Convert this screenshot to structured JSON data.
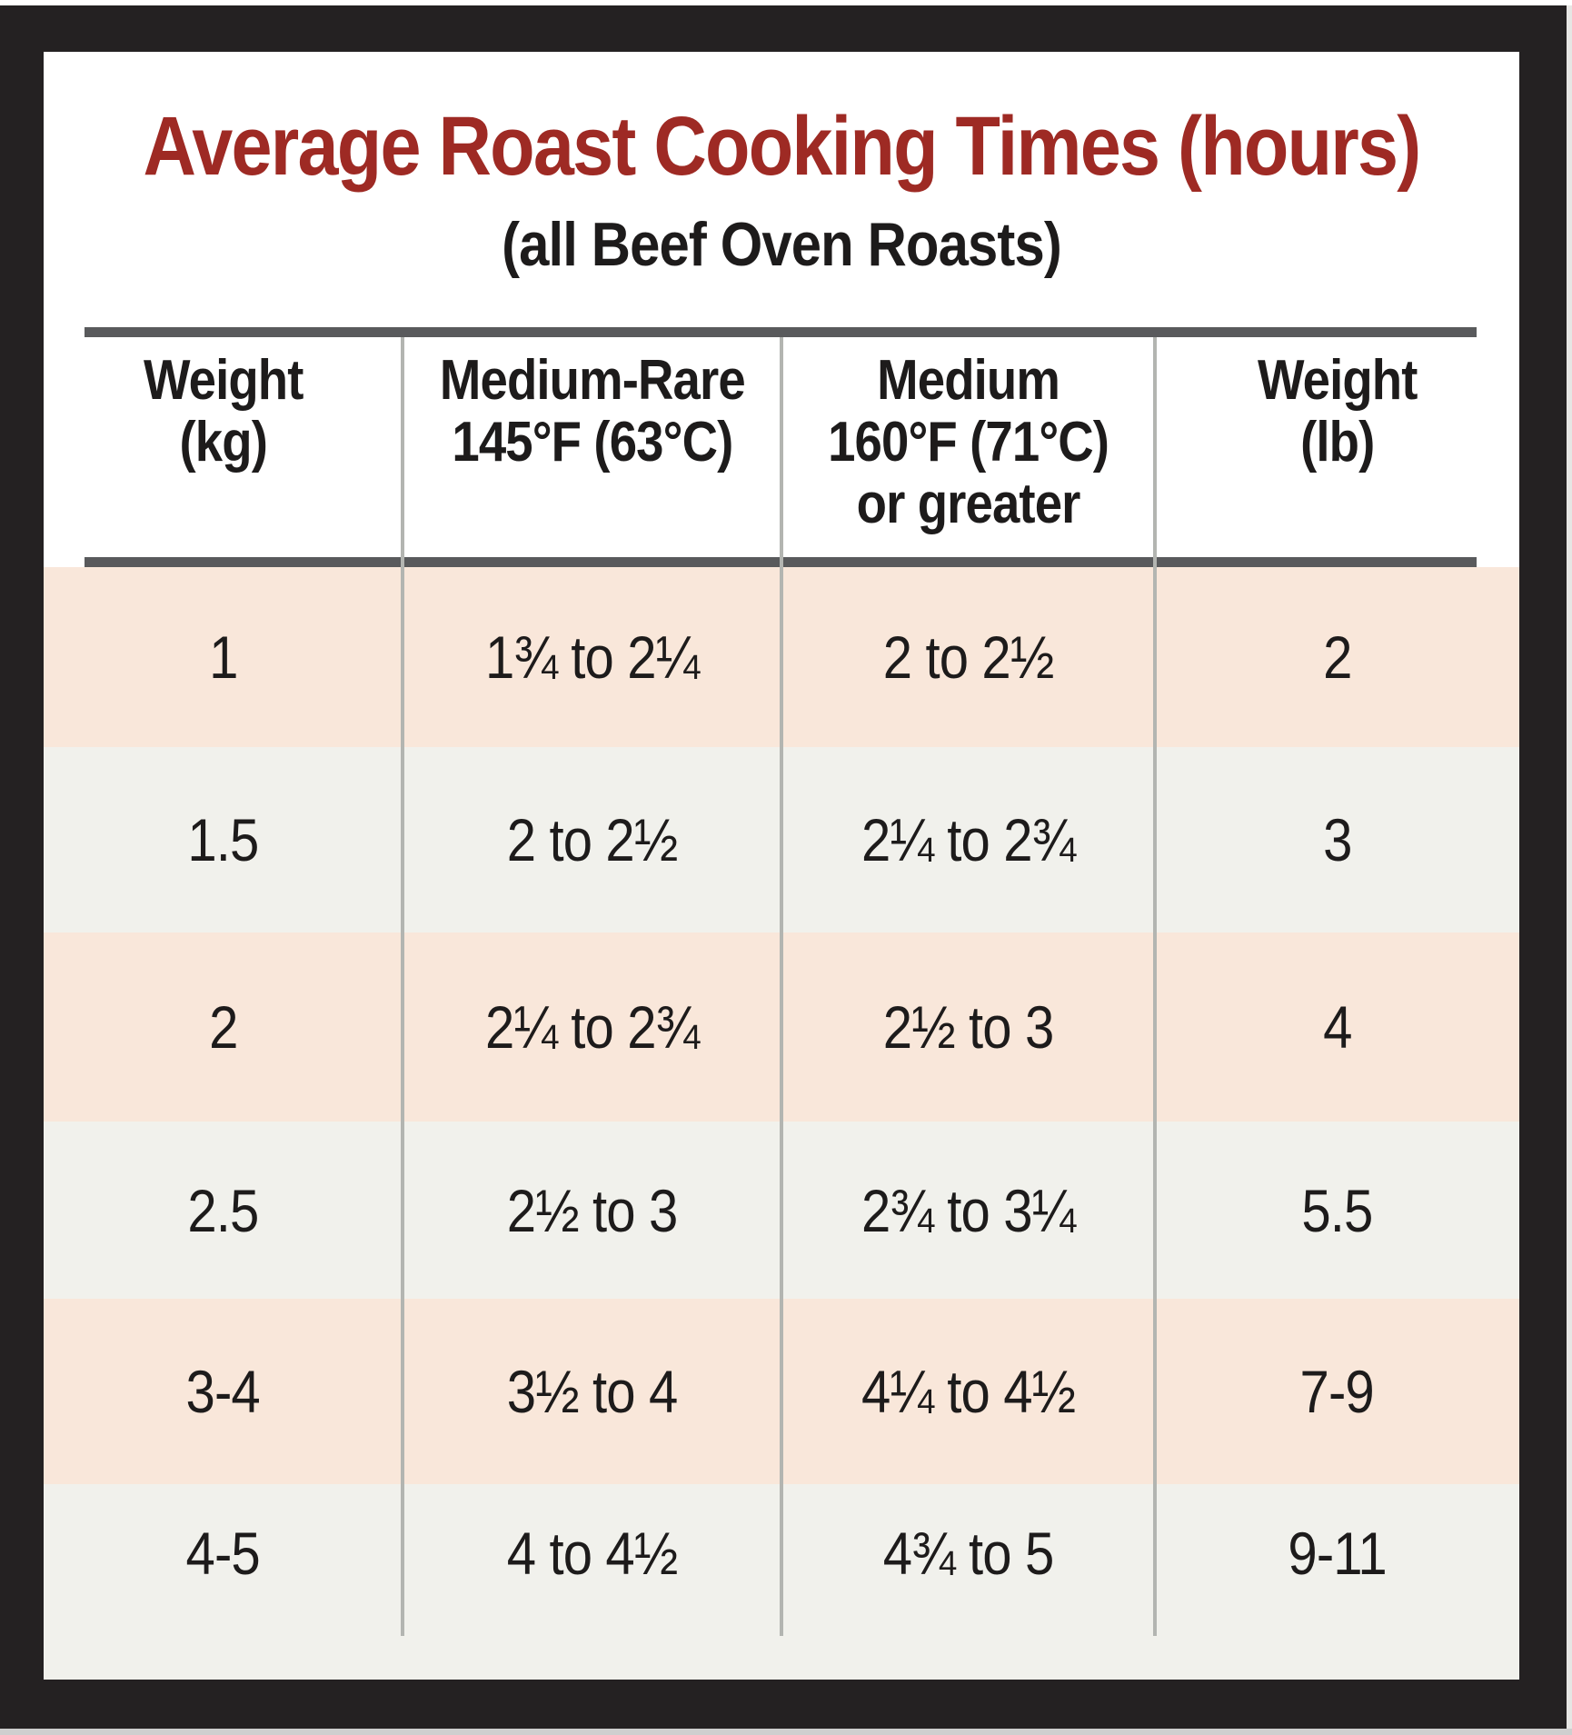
{
  "title": "Average Roast Cooking Times (hours)",
  "subtitle": "(all Beef Oven Roasts)",
  "table": {
    "headers": [
      "Weight\n(kg)",
      "Medium-Rare\n145°F (63°C)",
      "Medium\n160°F (71°C)\nor greater",
      "Weight\n(lb)"
    ],
    "rows": [
      [
        "1",
        "1¾ to 2¼",
        "2 to 2½",
        "2"
      ],
      [
        "1.5",
        "2 to 2½",
        "2¼ to 2¾",
        "3"
      ],
      [
        "2",
        "2¼ to 2¾",
        "2½ to 3",
        "4"
      ],
      [
        "2.5",
        "2½ to 3",
        "2¾ to 3¼",
        "5.5"
      ],
      [
        "3-4",
        "3½ to 4",
        "4¼ to 4½",
        "7-9"
      ],
      [
        "4-5",
        "4 to 4½",
        "4¾ to 5",
        "9-11"
      ]
    ]
  },
  "chart_data": {
    "type": "table",
    "title": "Average Roast Cooking Times (hours)",
    "subtitle": "(all Beef Oven Roasts)",
    "columns": [
      "Weight (kg)",
      "Medium-Rare 145°F (63°C)",
      "Medium 160°F (71°C) or greater",
      "Weight (lb)"
    ],
    "rows": [
      [
        "1",
        "1¾ to 2¼",
        "2 to 2½",
        "2"
      ],
      [
        "1.5",
        "2 to 2½",
        "2¼ to 2¾",
        "3"
      ],
      [
        "2",
        "2¼ to 2¾",
        "2½ to 3",
        "4"
      ],
      [
        "2.5",
        "2½ to 3",
        "2¾ to 3¼",
        "5.5"
      ],
      [
        "3-4",
        "3½ to 4",
        "4¼ to 4½",
        "7-9"
      ],
      [
        "4-5",
        "4 to 4½",
        "4¾ to 5",
        "9-11"
      ]
    ],
    "units": "hours",
    "row_striping": [
      "peach",
      "off-white",
      "peach",
      "off-white",
      "peach",
      "off-white"
    ]
  },
  "colors": {
    "frame": "#242122",
    "panel": "#ffffff",
    "title_red": "#9e2a24",
    "text_black": "#1d1b1b",
    "row_peach": "#f9e7da",
    "row_offwhite": "#f1f1ec",
    "rule_gray": "#595a5c",
    "divider_gray": "#b3b5b1"
  }
}
